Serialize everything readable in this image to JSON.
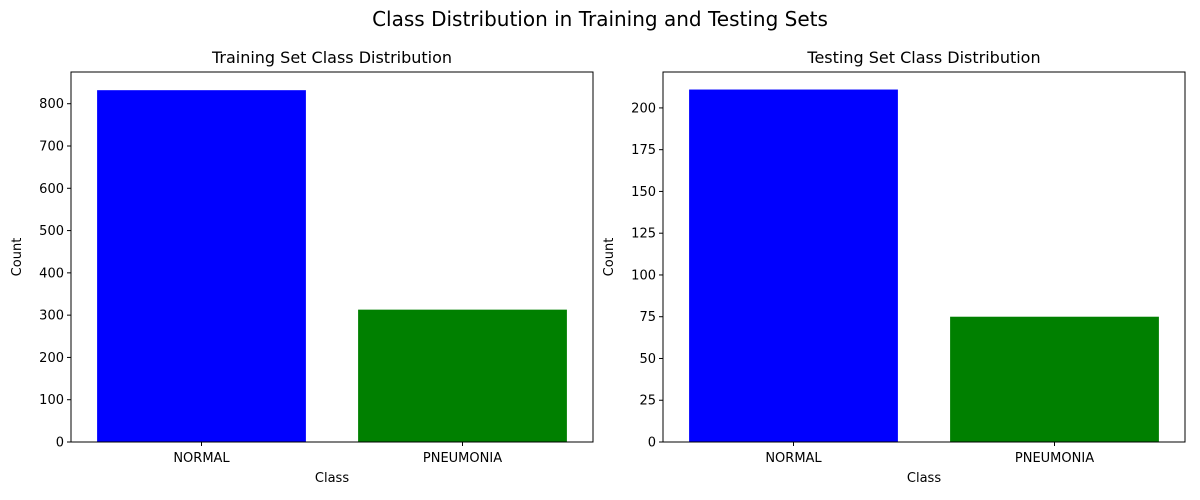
{
  "figure": {
    "suptitle": "Class Distribution in Training and Testing Sets"
  },
  "chart_data": [
    {
      "type": "bar",
      "title": "Training Set Class Distribution",
      "xlabel": "Class",
      "ylabel": "Count",
      "categories": [
        "NORMAL",
        "PNEUMONIA"
      ],
      "values": [
        832,
        313
      ],
      "colors": [
        "#0000ff",
        "#008000"
      ],
      "ylim": [
        0,
        875
      ],
      "yticks": [
        0,
        100,
        200,
        300,
        400,
        500,
        600,
        700,
        800
      ],
      "grid": false
    },
    {
      "type": "bar",
      "title": "Testing Set Class Distribution",
      "xlabel": "Class",
      "ylabel": "Count",
      "categories": [
        "NORMAL",
        "PNEUMONIA"
      ],
      "values": [
        211,
        75
      ],
      "colors": [
        "#0000ff",
        "#008000"
      ],
      "ylim": [
        0,
        221.5
      ],
      "yticks": [
        0,
        25,
        50,
        75,
        100,
        125,
        150,
        175,
        200
      ],
      "grid": false
    }
  ]
}
